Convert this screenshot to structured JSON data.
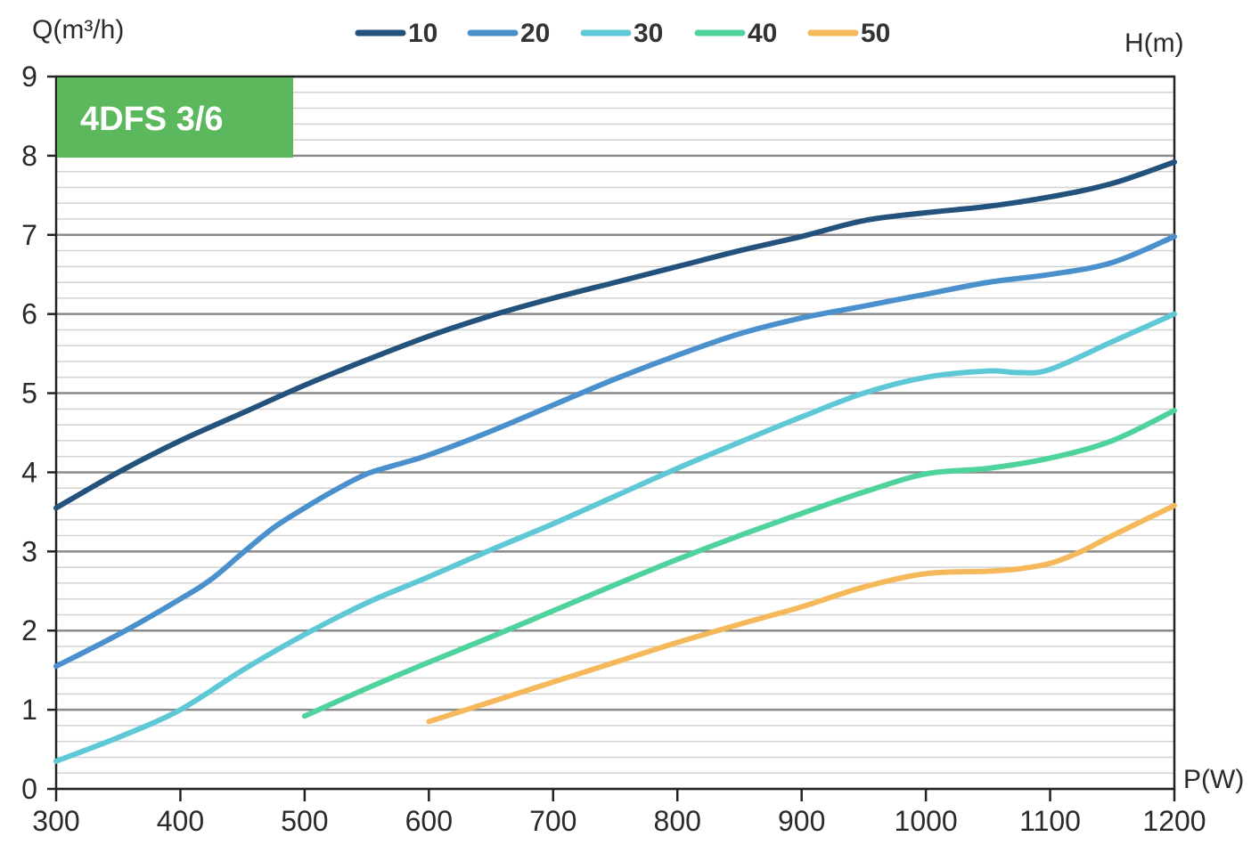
{
  "chart_data": {
    "type": "line",
    "title": "4DFS 3/6",
    "xlabel": "P(W)",
    "ylabel": "Q(m³/h)",
    "legend_title": "H(m)",
    "legend_position": "top",
    "xlim": [
      300,
      1200
    ],
    "ylim": [
      0,
      9
    ],
    "x_ticks": [
      300,
      400,
      500,
      600,
      700,
      800,
      900,
      1000,
      1100,
      1200
    ],
    "y_ticks": [
      0,
      1,
      2,
      3,
      4,
      5,
      6,
      7,
      8,
      9
    ],
    "grid": true,
    "series": [
      {
        "name": "10",
        "color": "#23527c",
        "x": [
          300,
          350,
          400,
          450,
          500,
          550,
          600,
          650,
          700,
          750,
          800,
          850,
          900,
          950,
          1000,
          1050,
          1100,
          1150,
          1200
        ],
        "y": [
          3.55,
          4.0,
          4.4,
          4.75,
          5.1,
          5.42,
          5.72,
          5.98,
          6.2,
          6.4,
          6.6,
          6.8,
          6.98,
          7.18,
          7.28,
          7.36,
          7.48,
          7.65,
          7.92
        ]
      },
      {
        "name": "20",
        "color": "#4a90cc",
        "x": [
          300,
          350,
          400,
          425,
          450,
          475,
          500,
          525,
          550,
          575,
          600,
          650,
          700,
          750,
          800,
          850,
          900,
          950,
          1000,
          1050,
          1100,
          1150,
          1200
        ],
        "y": [
          1.55,
          1.95,
          2.4,
          2.65,
          2.98,
          3.3,
          3.55,
          3.78,
          3.98,
          4.1,
          4.22,
          4.52,
          4.85,
          5.18,
          5.48,
          5.75,
          5.95,
          6.1,
          6.25,
          6.4,
          6.5,
          6.65,
          6.98
        ]
      },
      {
        "name": "30",
        "color": "#5ec8d6",
        "x": [
          300,
          350,
          400,
          450,
          500,
          550,
          600,
          650,
          700,
          750,
          800,
          850,
          900,
          950,
          1000,
          1050,
          1075,
          1100,
          1150,
          1200
        ],
        "y": [
          0.35,
          0.65,
          1.0,
          1.5,
          1.95,
          2.35,
          2.68,
          3.02,
          3.35,
          3.7,
          4.05,
          4.38,
          4.7,
          5.0,
          5.2,
          5.28,
          5.26,
          5.3,
          5.65,
          6.0
        ]
      },
      {
        "name": "40",
        "color": "#4fd39c",
        "x": [
          500,
          550,
          600,
          650,
          700,
          750,
          800,
          850,
          900,
          950,
          1000,
          1050,
          1100,
          1150,
          1200
        ],
        "y": [
          0.92,
          1.27,
          1.6,
          1.92,
          2.25,
          2.58,
          2.9,
          3.2,
          3.48,
          3.75,
          3.98,
          4.05,
          4.18,
          4.4,
          4.78
        ]
      },
      {
        "name": "50",
        "color": "#f5b85a",
        "x": [
          600,
          650,
          700,
          750,
          800,
          850,
          900,
          950,
          1000,
          1050,
          1075,
          1100,
          1125,
          1150,
          1200
        ],
        "y": [
          0.85,
          1.1,
          1.35,
          1.6,
          1.85,
          2.08,
          2.3,
          2.55,
          2.72,
          2.75,
          2.78,
          2.85,
          3.0,
          3.2,
          3.58
        ]
      }
    ]
  }
}
